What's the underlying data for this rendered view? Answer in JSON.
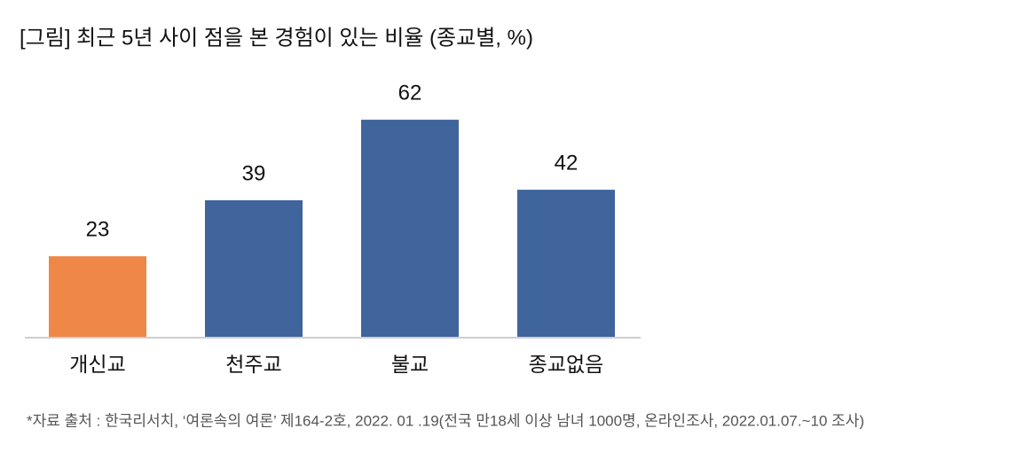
{
  "chart_data": {
    "type": "bar",
    "title": "[그림] 최근 5년 사이 점을 본 경험이 있는 비율 (종교별, %)",
    "categories": [
      "개신교",
      "천주교",
      "불교",
      "종교없음"
    ],
    "values": [
      23,
      39,
      62,
      42
    ],
    "colors": [
      "#ef8747",
      "#40649c",
      "#40649c",
      "#40649c"
    ],
    "note": "*자료 출처 : 한국리서치, ‘여론속의 여론’ 제164-2호, 2022. 01 .19(전국 만18세 이상 남녀 1000명, 온라인조사, 2022.01.07.~10 조사)"
  }
}
